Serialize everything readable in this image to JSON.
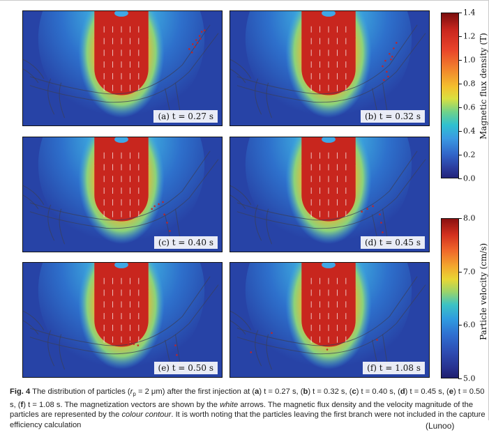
{
  "panels": [
    {
      "id": "a",
      "label": "(a) t = 0.27 s"
    },
    {
      "id": "b",
      "label": "(b) t = 0.32 s"
    },
    {
      "id": "c",
      "label": "(c) t = 0.40 s"
    },
    {
      "id": "d",
      "label": "(d) t = 0.45 s"
    },
    {
      "id": "e",
      "label": "(e) t = 0.50 s"
    },
    {
      "id": "f",
      "label": "(f) t = 1.08 s"
    }
  ],
  "colorbars": {
    "flux": {
      "label": "Magnetic flux density (T)",
      "ticks": [
        "1.4",
        "1.2",
        "1.0",
        "0.8",
        "0.6",
        "0.4",
        "0.2",
        "0.0"
      ],
      "range": [
        0.0,
        1.4
      ]
    },
    "velocity": {
      "label": "Particle velocity (cm/s)",
      "ticks": [
        "8.0",
        "7.0",
        "6.0",
        "5.0"
      ],
      "range": [
        5.0,
        8.0
      ]
    }
  },
  "caption": {
    "fig": "Fig. 4",
    "text_a": " The distribution of particles (",
    "rp": "r",
    "rp_sub": "p",
    "text_b": " = 2 μm) after the first injection at (",
    "items": [
      {
        "letter": "a",
        "value": "t = 0.27 s"
      },
      {
        "letter": "b",
        "value": "t = 0.32 s"
      },
      {
        "letter": "c",
        "value": "t = 0.40 s"
      },
      {
        "letter": "d",
        "value": "t = 0.45 s"
      },
      {
        "letter": "e",
        "value": "t = 0.50 s"
      },
      {
        "letter": "f",
        "value": "t = 1.08 s"
      }
    ],
    "text_c": " The magnetization vectors are shown by the ",
    "white": "white",
    "text_d": " arrows. The magnetic flux density and the velocity magnitude of the particles are represented by the ",
    "contour": "colour contour",
    "text_e": ". It is worth noting that the particles leaving the first branch were not included in the capture efficiency calculation"
  },
  "source": "(Lunoo)",
  "colors": {
    "bg_blue": "#2743a6",
    "magnet_red": "#c8261e",
    "arrow": "#ffffff"
  }
}
